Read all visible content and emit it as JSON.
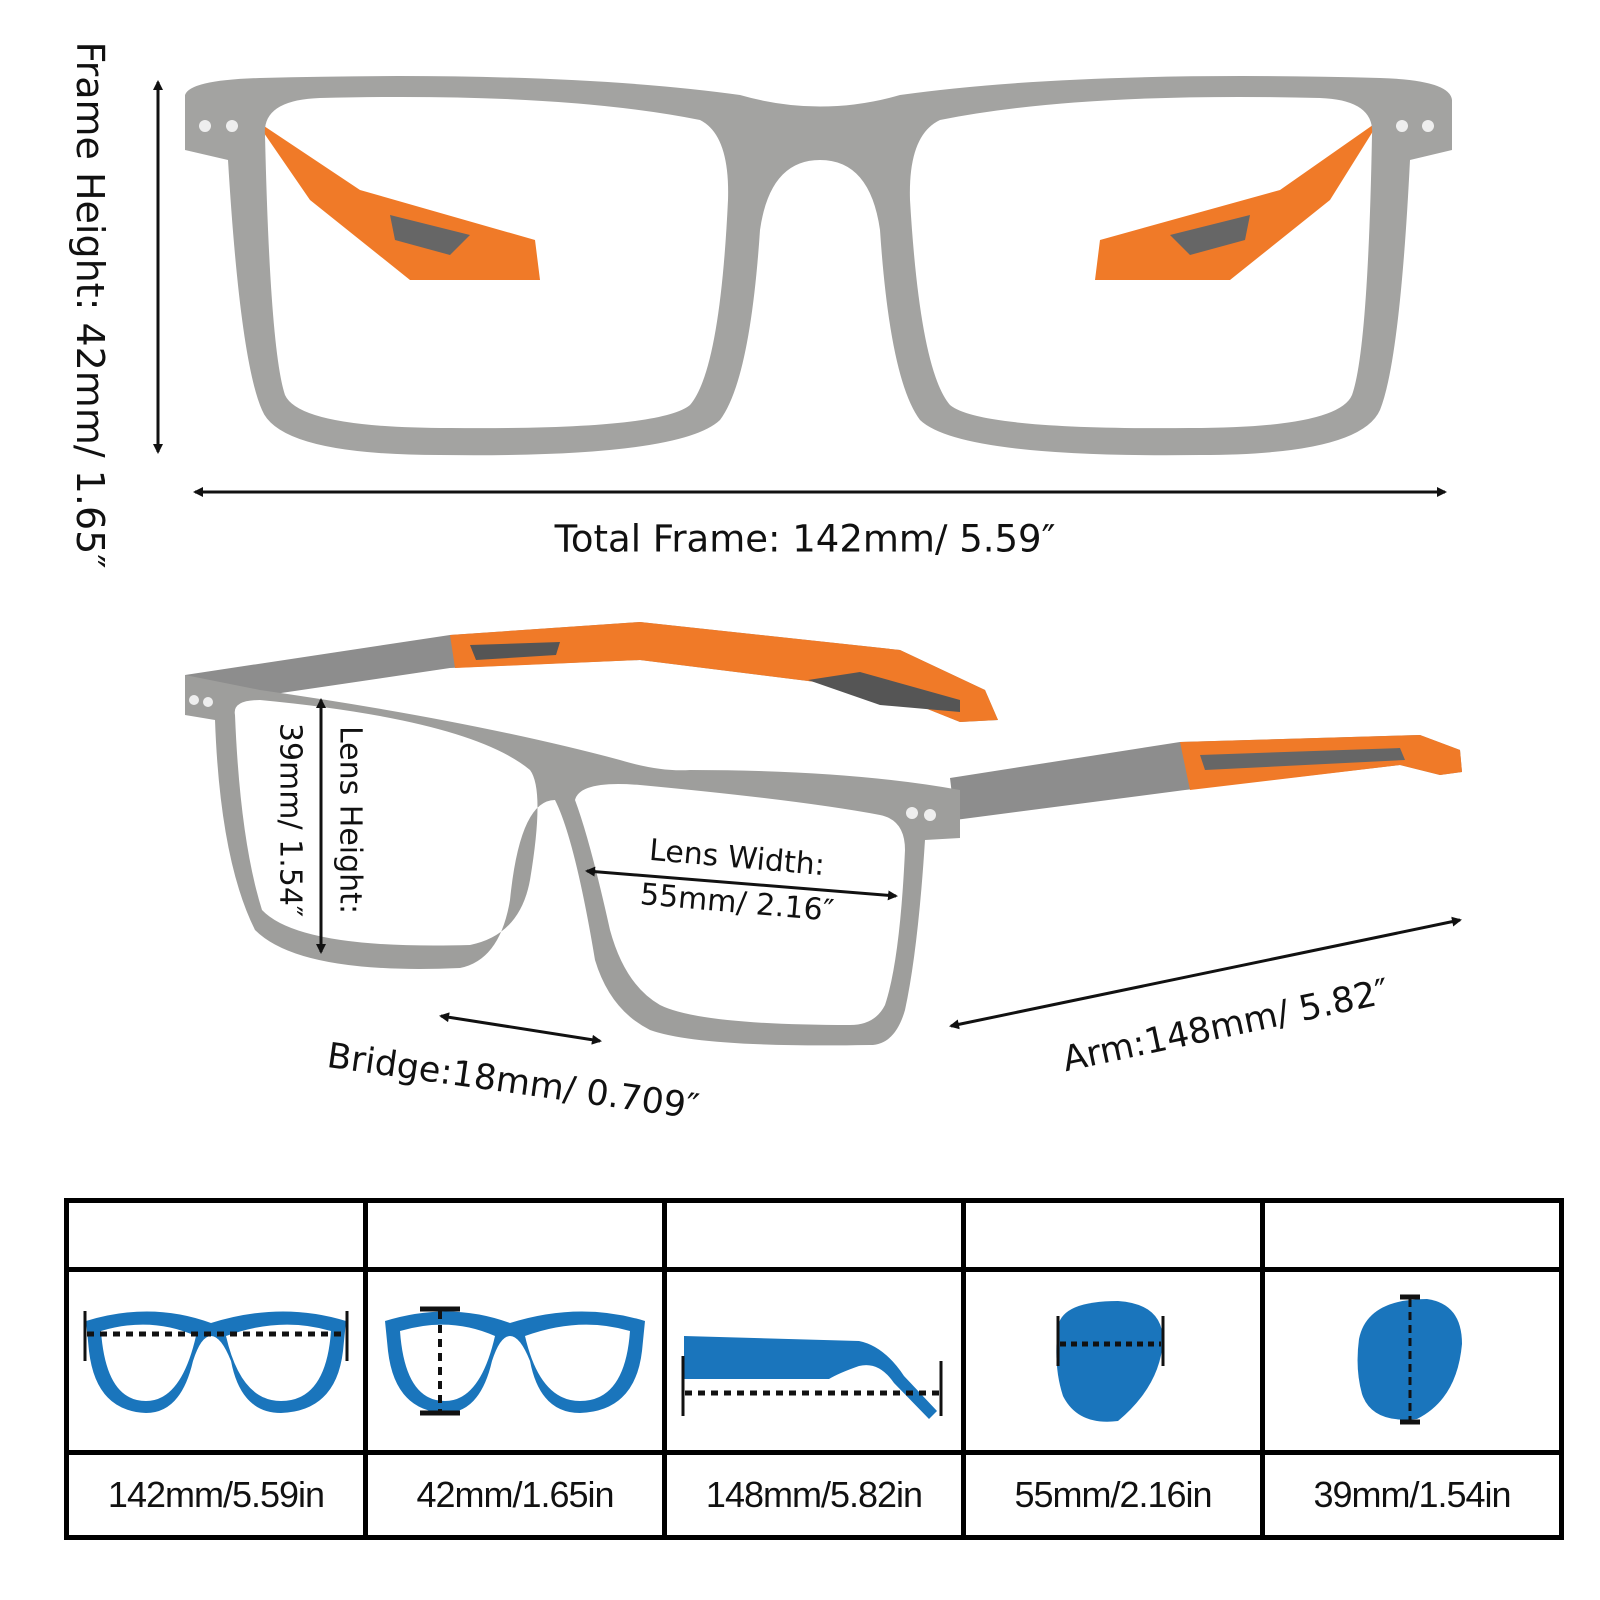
{
  "labels": {
    "frame_height": "Frame Height: 42mm/ 1.65″",
    "total_frame": "Total Frame: 142mm/ 5.59″",
    "lens_height_title": "Lens Height:",
    "lens_height_value": "39mm/ 1.54″",
    "lens_width_title": "Lens Width:",
    "lens_width_value": "55mm/ 2.16″",
    "bridge": "Bridge:18mm/ 0.709″",
    "arm": "Arm:148mm/ 5.82″"
  },
  "colors": {
    "frame": "#9a9a98",
    "temple_accent": "#f07a28",
    "icon_blue": "#1a75bc"
  },
  "table": {
    "headers": [
      "",
      "",
      "",
      "",
      ""
    ],
    "icons": [
      "frame-total-width-icon",
      "frame-height-icon",
      "arm-length-icon",
      "lens-width-icon",
      "lens-height-icon"
    ],
    "values": [
      "142mm/5.59in",
      "42mm/1.65in",
      "148mm/5.82in",
      "55mm/2.16in",
      "39mm/1.54in"
    ]
  }
}
